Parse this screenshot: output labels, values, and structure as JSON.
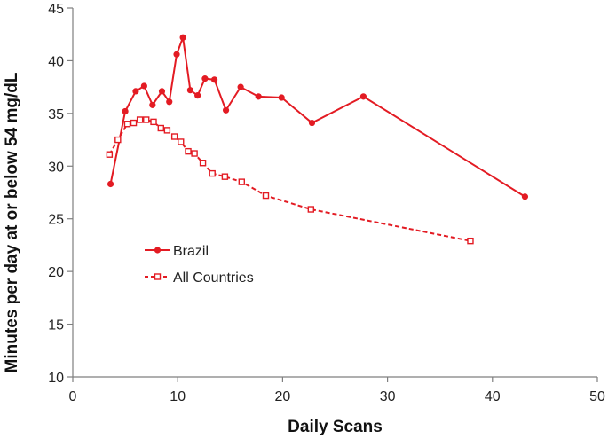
{
  "colors": {
    "series": "#e31b23",
    "axis": "#7f7f7f"
  },
  "chart_data": {
    "type": "line",
    "title": "",
    "xlabel": "Daily Scans",
    "ylabel": "Minutes per day at or below 54 mg/dL",
    "xlim": [
      0,
      50
    ],
    "ylim": [
      10,
      45
    ],
    "xticks": [
      "0",
      "10",
      "20",
      "30",
      "40",
      "50"
    ],
    "yticks": [
      "10",
      "15",
      "20",
      "25",
      "30",
      "35",
      "40",
      "45"
    ],
    "grid": false,
    "legend_position": "lower-left",
    "series": [
      {
        "name": "Brazil",
        "style": "solid",
        "marker": "filled-circle",
        "x": [
          3.6,
          5.0,
          6.0,
          6.8,
          7.6,
          8.5,
          9.2,
          9.9,
          10.5,
          11.2,
          11.9,
          12.6,
          13.5,
          14.6,
          16.0,
          17.7,
          19.9,
          22.8,
          27.7,
          43.1
        ],
        "y": [
          28.3,
          35.2,
          37.1,
          37.6,
          35.8,
          37.1,
          36.1,
          40.6,
          42.2,
          37.2,
          36.7,
          38.3,
          38.2,
          35.3,
          37.5,
          36.6,
          36.5,
          34.1,
          36.6,
          27.1
        ]
      },
      {
        "name": "All Countries",
        "style": "dashed",
        "marker": "open-square",
        "x": [
          3.5,
          4.3,
          5.2,
          5.8,
          6.4,
          7.0,
          7.7,
          8.4,
          9.0,
          9.7,
          10.3,
          11.0,
          11.6,
          12.4,
          13.3,
          14.5,
          16.1,
          18.4,
          22.7,
          37.9
        ],
        "y": [
          31.1,
          32.5,
          34.0,
          34.1,
          34.4,
          34.4,
          34.2,
          33.6,
          33.4,
          32.8,
          32.3,
          31.4,
          31.2,
          30.3,
          29.3,
          29.0,
          28.5,
          27.2,
          25.9,
          22.9
        ]
      }
    ]
  }
}
